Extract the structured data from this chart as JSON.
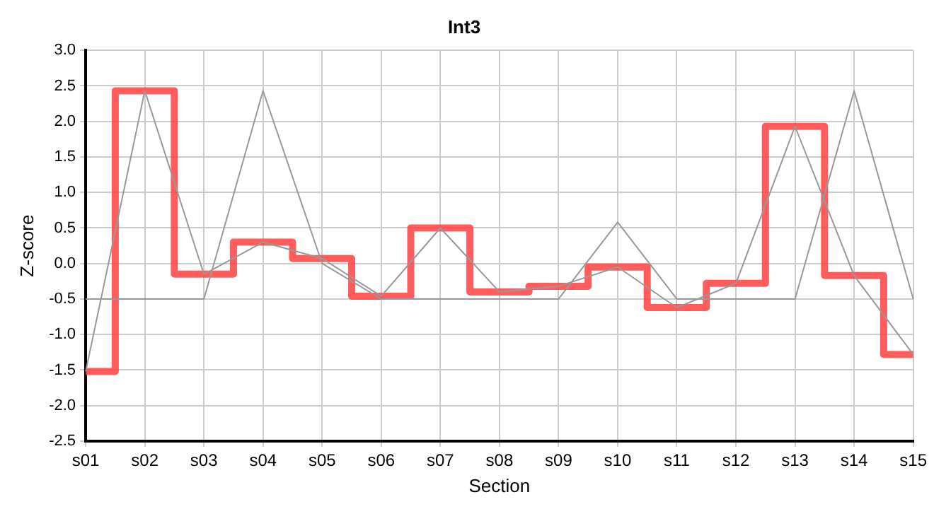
{
  "chart_data": {
    "type": "line",
    "title": "Int3",
    "xlabel": "Section",
    "ylabel": "Z-score",
    "categories": [
      "s01",
      "s02",
      "s03",
      "s04",
      "s05",
      "s06",
      "s07",
      "s08",
      "s09",
      "s10",
      "s11",
      "s12",
      "s13",
      "s14",
      "s15"
    ],
    "series": [
      {
        "color": "#999999",
        "values": [
          -0.5,
          -0.5,
          -0.5,
          2.43,
          0.0,
          -0.5,
          -0.5,
          -0.5,
          -0.5,
          0.58,
          -0.5,
          -0.5,
          -0.5,
          2.43,
          -0.5
        ]
      },
      {
        "color": "#999999",
        "values": [
          -1.52,
          2.43,
          -0.15,
          0.3,
          0.07,
          -0.46,
          0.5,
          -0.4,
          -0.32,
          -0.05,
          -0.62,
          -0.28,
          1.93,
          -0.17,
          -1.28
        ]
      },
      {
        "type": "step",
        "color": "#ff4444",
        "values": [
          -1.52,
          2.43,
          -0.15,
          0.3,
          0.07,
          -0.46,
          0.5,
          -0.4,
          -0.32,
          -0.05,
          -0.62,
          -0.28,
          1.93,
          -0.17,
          -1.28
        ]
      }
    ],
    "ylim": [
      -2.5,
      3.0
    ],
    "yticks": [
      {
        "value": -2.5,
        "label": "-2.5"
      },
      {
        "value": -2.0,
        "label": "-2.0"
      },
      {
        "value": -1.5,
        "label": "-1.5"
      },
      {
        "value": -1.0,
        "label": "-1.0"
      },
      {
        "value": -0.5,
        "label": "-0.5"
      },
      {
        "value": 0,
        "label": "0.0"
      },
      {
        "value": 0.5,
        "label": "0.5"
      },
      {
        "value": 1.0,
        "label": "1.0"
      },
      {
        "value": 1.5,
        "label": "1.5"
      },
      {
        "value": 2.0,
        "label": "2.0"
      },
      {
        "value": 2.5,
        "label": "2.5"
      },
      {
        "value": 3.0,
        "label": "3.0"
      }
    ],
    "grid": true,
    "legend": false,
    "marker": "none",
    "line_style": "solid"
  }
}
